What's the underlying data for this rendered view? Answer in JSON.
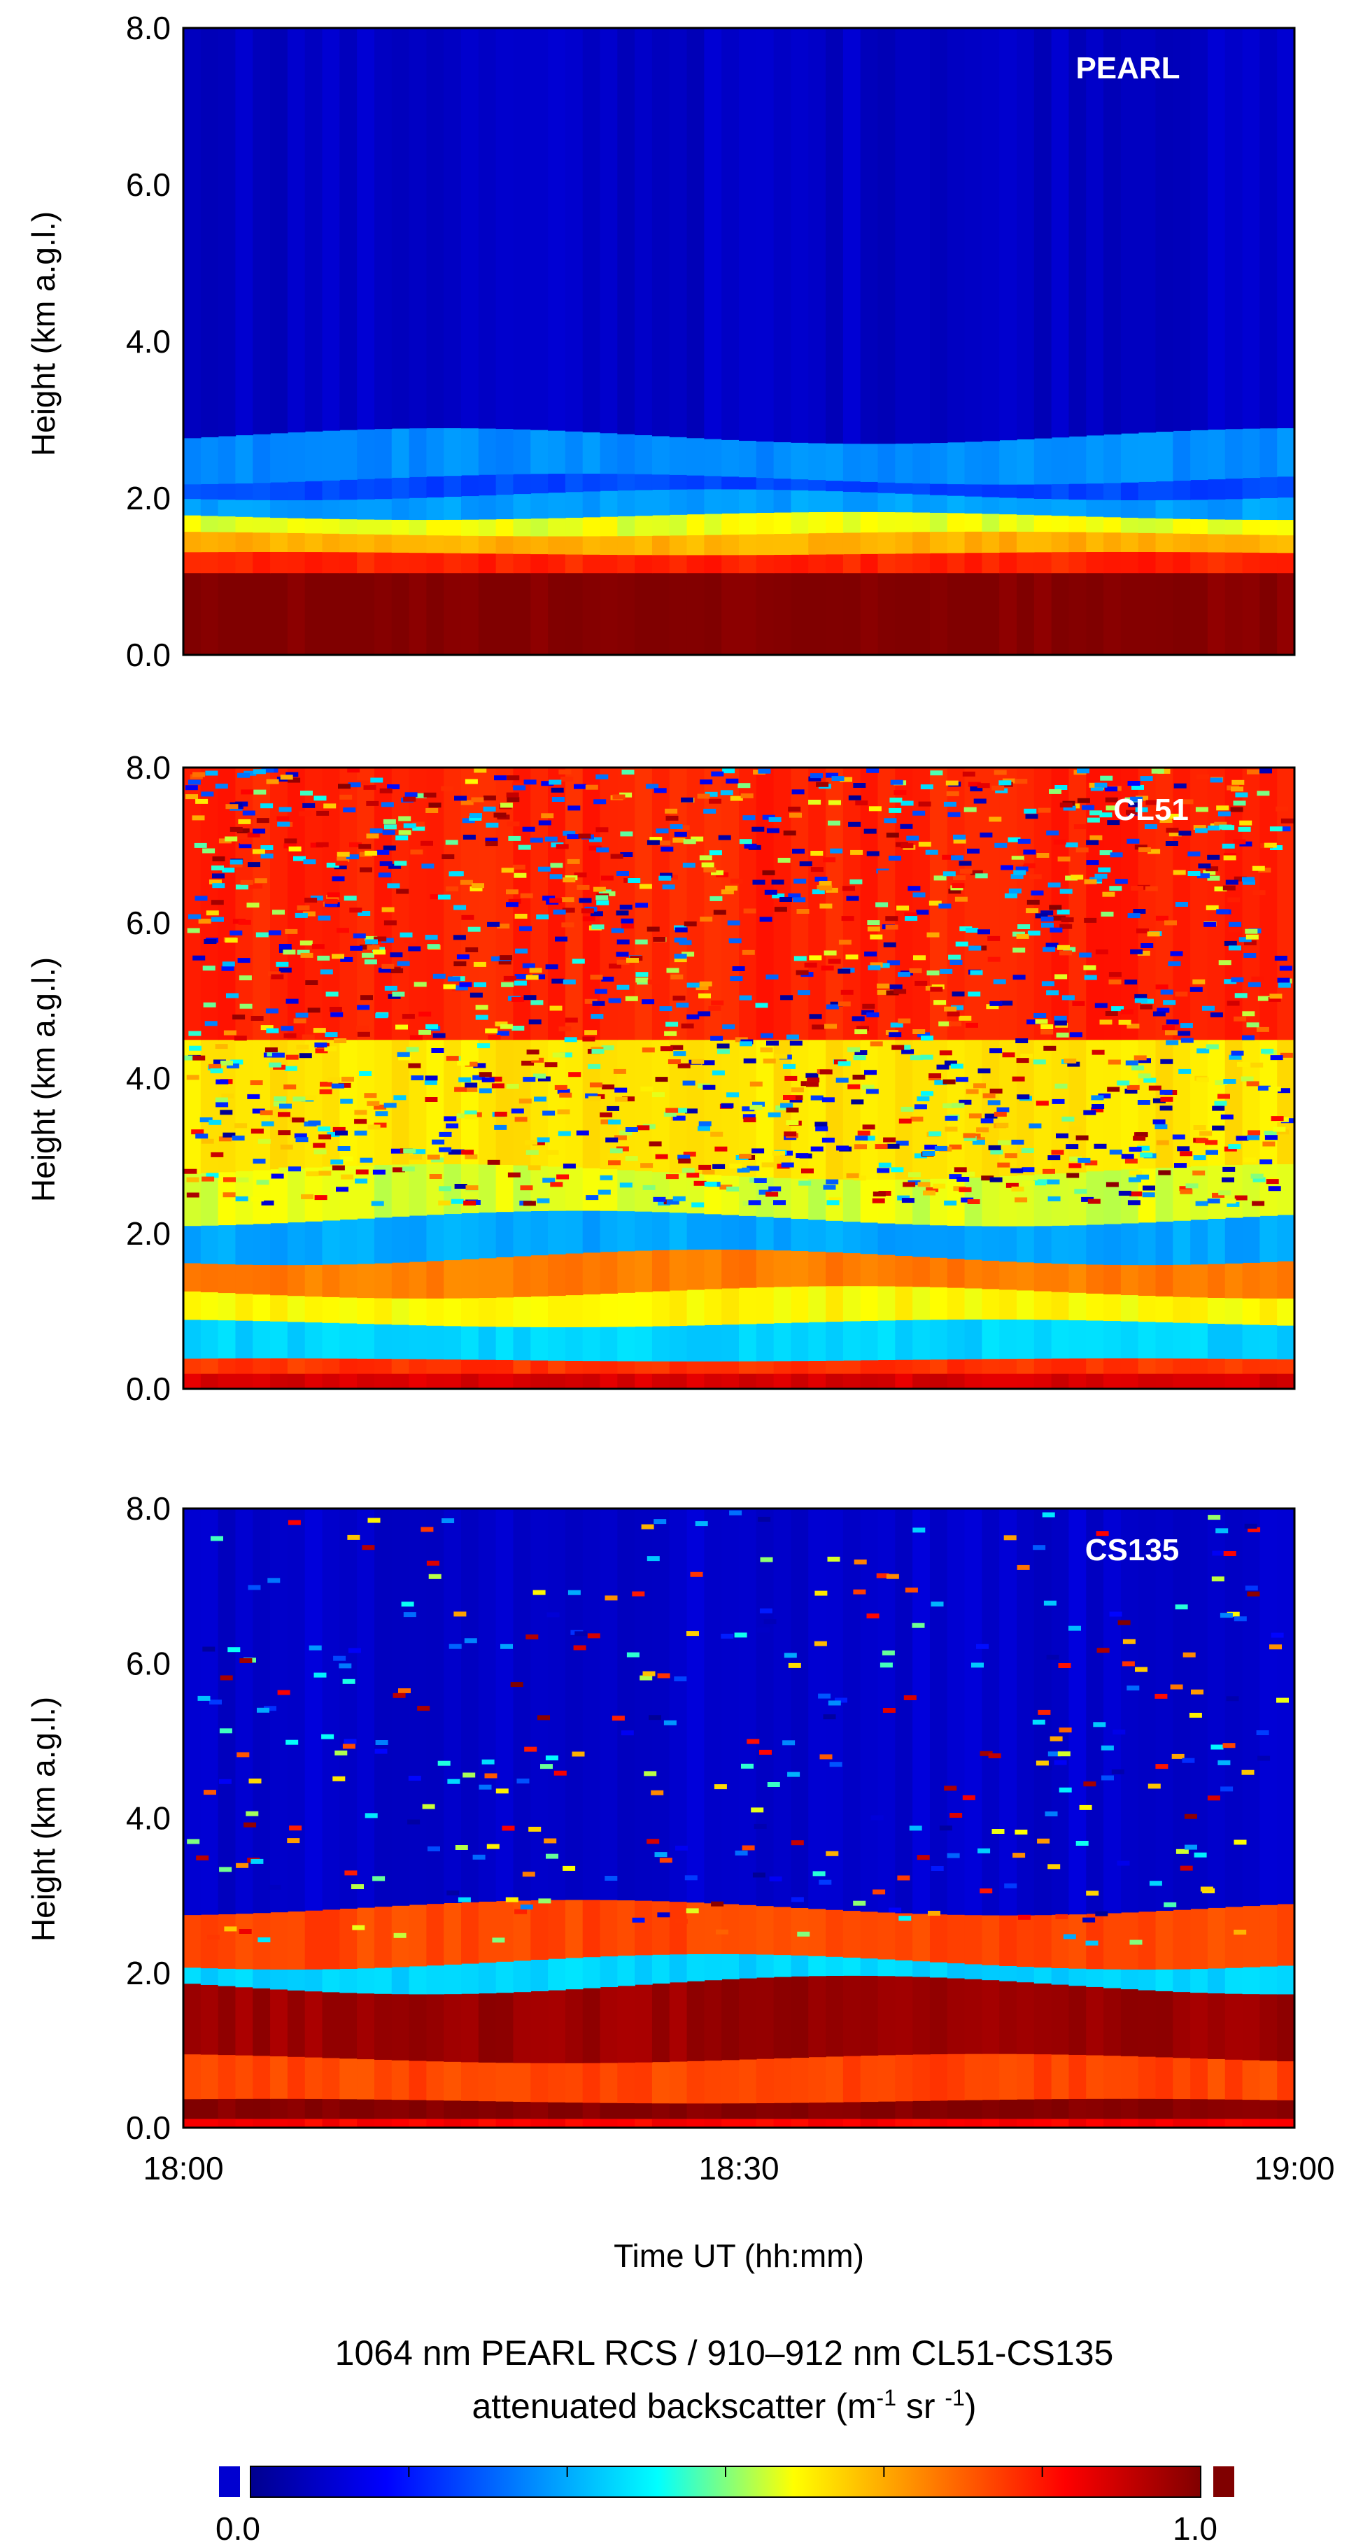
{
  "chart_data": [
    {
      "type": "heatmap",
      "panel_label": "PEARL",
      "xlim": [
        "18:00",
        "19:00"
      ],
      "ylim": [
        0.0,
        8.0
      ],
      "y_ticks": [
        "0.0",
        "2.0",
        "4.0",
        "6.0",
        "8.0"
      ],
      "ylabel": "Height (km a.g.l.)",
      "noise": 0.0,
      "layers": [
        {
          "from_km": 0.0,
          "to_km": 1.05,
          "value": 1.0,
          "wave_km": 0.0
        },
        {
          "from_km": 1.05,
          "to_km": 1.3,
          "value": 0.82,
          "wave_km": 0.02
        },
        {
          "from_km": 1.3,
          "to_km": 1.55,
          "value": 0.66,
          "wave_km": 0.03
        },
        {
          "from_km": 1.55,
          "to_km": 1.78,
          "value": 0.56,
          "wave_km": 0.05
        },
        {
          "from_km": 1.78,
          "to_km": 2.05,
          "value": 0.32,
          "wave_km": 0.07
        },
        {
          "from_km": 2.05,
          "to_km": 2.25,
          "value": 0.22,
          "wave_km": 0.07
        },
        {
          "from_km": 2.25,
          "to_km": 2.8,
          "value": 0.3,
          "wave_km": 0.1
        },
        {
          "from_km": 2.8,
          "to_km": 8.0,
          "value": 0.07,
          "wave_km": 0.0
        }
      ]
    },
    {
      "type": "heatmap",
      "panel_label": "CL51",
      "xlim": [
        "18:00",
        "19:00"
      ],
      "ylim": [
        0.0,
        8.0
      ],
      "y_ticks": [
        "0.0",
        "2.0",
        "4.0",
        "6.0",
        "8.0"
      ],
      "ylabel": "Height (km a.g.l.)",
      "noise": 0.65,
      "layers": [
        {
          "from_km": 0.0,
          "to_km": 0.2,
          "value": 0.9,
          "wave_km": 0.0
        },
        {
          "from_km": 0.2,
          "to_km": 0.38,
          "value": 0.8,
          "wave_km": 0.02
        },
        {
          "from_km": 0.38,
          "to_km": 0.85,
          "value": 0.38,
          "wave_km": 0.05
        },
        {
          "from_km": 0.85,
          "to_km": 1.25,
          "value": 0.58,
          "wave_km": 0.08
        },
        {
          "from_km": 1.25,
          "to_km": 1.7,
          "value": 0.72,
          "wave_km": 0.1
        },
        {
          "from_km": 1.7,
          "to_km": 2.2,
          "value": 0.33,
          "wave_km": 0.1
        },
        {
          "from_km": 2.2,
          "to_km": 2.8,
          "value": 0.55,
          "wave_km": 0.1
        },
        {
          "from_km": 2.8,
          "to_km": 4.5,
          "value": 0.6,
          "wave_km": 0.0
        },
        {
          "from_km": 4.5,
          "to_km": 8.0,
          "value": 0.82,
          "wave_km": 0.0
        }
      ]
    },
    {
      "type": "heatmap",
      "panel_label": "CS135",
      "xlim": [
        "18:00",
        "19:00"
      ],
      "ylim": [
        0.0,
        8.0
      ],
      "y_ticks": [
        "0.0",
        "2.0",
        "4.0",
        "6.0",
        "8.0"
      ],
      "ylabel": "Height (km a.g.l.)",
      "xlabel": "Time UT (hh:mm)",
      "x_ticks": [
        "18:00",
        "18:30",
        "19:00"
      ],
      "noise": 0.12,
      "layers": [
        {
          "from_km": 0.0,
          "to_km": 0.12,
          "value": 0.86,
          "wave_km": 0.0
        },
        {
          "from_km": 0.12,
          "to_km": 0.35,
          "value": 1.0,
          "wave_km": 0.03
        },
        {
          "from_km": 0.35,
          "to_km": 0.9,
          "value": 0.78,
          "wave_km": 0.06
        },
        {
          "from_km": 0.9,
          "to_km": 1.85,
          "value": 0.97,
          "wave_km": 0.12
        },
        {
          "from_km": 1.85,
          "to_km": 2.15,
          "value": 0.38,
          "wave_km": 0.1
        },
        {
          "from_km": 2.15,
          "to_km": 2.85,
          "value": 0.78,
          "wave_km": 0.1
        },
        {
          "from_km": 2.85,
          "to_km": 8.0,
          "value": 0.08,
          "wave_km": 0.0
        }
      ]
    }
  ],
  "colorbar": {
    "title_line1": "1064 nm PEARL RCS / 910–912 nm CL51-CS135",
    "title_line2_prefix": "attenuated backscatter (m",
    "sup1": "-1",
    "mid": " sr ",
    "sup2": "-1",
    "suffix": ")",
    "min_label": "0.0",
    "max_label": "1.0",
    "range": [
      0.0,
      1.0
    ],
    "colormap": [
      "#00008f",
      "#0000ff",
      "#0080ff",
      "#00ffff",
      "#ffff00",
      "#ff8000",
      "#ff0000",
      "#800000"
    ],
    "under_color": "#0000d0",
    "over_color": "#800000"
  }
}
